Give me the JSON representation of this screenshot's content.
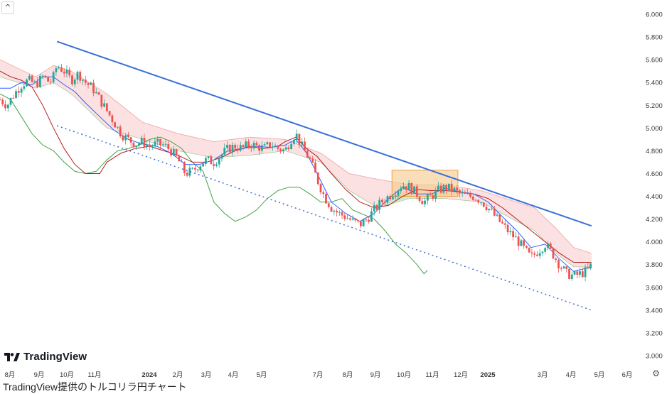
{
  "chart_data": {
    "type": "line",
    "title": "",
    "caption": "TradingView提供のトルコリラ円チャート",
    "y_axis": {
      "ticks": [
        "6.000",
        "5.800",
        "5.600",
        "5.400",
        "5.200",
        "5.000",
        "4.800",
        "4.600",
        "4.400",
        "4.200",
        "4.000",
        "3.800",
        "3.600",
        "3.400",
        "3.200",
        "3.000"
      ],
      "range": [
        3.0,
        6.0
      ],
      "position": "right"
    },
    "x_axis": {
      "ticks": [
        "8月",
        "9月",
        "10月",
        "11月",
        "2024",
        "2月",
        "3月",
        "4月",
        "5月",
        "7月",
        "8月",
        "9月",
        "10月",
        "11月",
        "12月",
        "2025",
        "3月",
        "4月",
        "5月",
        "6月"
      ]
    },
    "price_path": [
      [
        0,
        5.25
      ],
      [
        4,
        5.2
      ],
      [
        8,
        5.3
      ],
      [
        12,
        5.38
      ],
      [
        16,
        5.42
      ],
      [
        20,
        5.38
      ],
      [
        24,
        5.45
      ],
      [
        28,
        5.4
      ],
      [
        30,
        5.45
      ],
      [
        32,
        5.55
      ],
      [
        36,
        5.5
      ],
      [
        40,
        5.42
      ],
      [
        44,
        5.48
      ],
      [
        48,
        5.4
      ],
      [
        52,
        5.35
      ],
      [
        56,
        5.25
      ],
      [
        60,
        5.15
      ],
      [
        64,
        5.05
      ],
      [
        68,
        4.95
      ],
      [
        72,
        4.9
      ],
      [
        76,
        4.86
      ],
      [
        80,
        4.88
      ],
      [
        84,
        4.84
      ],
      [
        88,
        4.86
      ],
      [
        92,
        4.85
      ],
      [
        96,
        4.8
      ],
      [
        100,
        4.72
      ],
      [
        104,
        4.6
      ],
      [
        108,
        4.62
      ],
      [
        112,
        4.68
      ],
      [
        116,
        4.72
      ],
      [
        120,
        4.7
      ],
      [
        124,
        4.76
      ],
      [
        128,
        4.82
      ],
      [
        132,
        4.84
      ],
      [
        136,
        4.82
      ],
      [
        140,
        4.86
      ],
      [
        144,
        4.84
      ],
      [
        148,
        4.82
      ],
      [
        152,
        4.86
      ],
      [
        156,
        4.82
      ],
      [
        160,
        4.8
      ],
      [
        164,
        4.92
      ],
      [
        166,
        4.95
      ],
      [
        170,
        4.82
      ],
      [
        174,
        4.72
      ],
      [
        178,
        4.55
      ],
      [
        182,
        4.4
      ],
      [
        186,
        4.3
      ],
      [
        190,
        4.25
      ],
      [
        194,
        4.22
      ],
      [
        198,
        4.18
      ],
      [
        202,
        4.15
      ],
      [
        206,
        4.2
      ],
      [
        210,
        4.28
      ],
      [
        214,
        4.35
      ],
      [
        218,
        4.4
      ],
      [
        222,
        4.45
      ],
      [
        226,
        4.5
      ],
      [
        230,
        4.48
      ],
      [
        234,
        4.42
      ],
      [
        238,
        4.35
      ],
      [
        242,
        4.4
      ],
      [
        246,
        4.45
      ],
      [
        250,
        4.48
      ],
      [
        254,
        4.46
      ],
      [
        258,
        4.42
      ],
      [
        262,
        4.4
      ],
      [
        266,
        4.4
      ],
      [
        270,
        4.36
      ],
      [
        274,
        4.3
      ],
      [
        278,
        4.22
      ],
      [
        282,
        4.15
      ],
      [
        286,
        4.08
      ],
      [
        290,
        4.02
      ],
      [
        294,
        3.94
      ],
      [
        298,
        3.86
      ],
      [
        302,
        3.92
      ],
      [
        306,
        3.98
      ],
      [
        310,
        3.9
      ],
      [
        314,
        3.8
      ],
      [
        318,
        3.72
      ],
      [
        322,
        3.7
      ],
      [
        326,
        3.72
      ],
      [
        330,
        3.75
      ],
      [
        332,
        3.8
      ]
    ],
    "baseline_path": [
      [
        0,
        5.5
      ],
      [
        6,
        5.45
      ],
      [
        12,
        5.42
      ],
      [
        18,
        5.36
      ],
      [
        24,
        5.2
      ],
      [
        30,
        5.0
      ],
      [
        36,
        4.82
      ],
      [
        42,
        4.68
      ],
      [
        48,
        4.6
      ],
      [
        56,
        4.6
      ],
      [
        60,
        4.7
      ],
      [
        68,
        4.78
      ],
      [
        76,
        4.82
      ],
      [
        84,
        4.84
      ],
      [
        92,
        4.8
      ],
      [
        100,
        4.76
      ],
      [
        108,
        4.7
      ],
      [
        116,
        4.7
      ],
      [
        124,
        4.74
      ],
      [
        132,
        4.8
      ],
      [
        140,
        4.84
      ],
      [
        148,
        4.82
      ],
      [
        156,
        4.84
      ],
      [
        160,
        4.88
      ],
      [
        166,
        4.92
      ],
      [
        172,
        4.82
      ],
      [
        178,
        4.75
      ],
      [
        186,
        4.6
      ],
      [
        194,
        4.46
      ],
      [
        202,
        4.35
      ],
      [
        210,
        4.3
      ],
      [
        218,
        4.32
      ],
      [
        226,
        4.4
      ],
      [
        234,
        4.46
      ],
      [
        242,
        4.45
      ],
      [
        250,
        4.45
      ],
      [
        258,
        4.44
      ],
      [
        266,
        4.42
      ],
      [
        274,
        4.38
      ],
      [
        282,
        4.3
      ],
      [
        290,
        4.2
      ],
      [
        298,
        4.1
      ],
      [
        306,
        4.0
      ],
      [
        314,
        3.9
      ],
      [
        322,
        3.82
      ],
      [
        332,
        3.82
      ]
    ],
    "conversion_path": [
      [
        0,
        5.35
      ],
      [
        6,
        5.35
      ],
      [
        12,
        5.4
      ],
      [
        18,
        5.38
      ],
      [
        24,
        5.45
      ],
      [
        30,
        5.45
      ],
      [
        36,
        5.38
      ],
      [
        42,
        5.32
      ],
      [
        48,
        5.22
      ],
      [
        56,
        5.1
      ],
      [
        64,
        4.98
      ],
      [
        72,
        4.9
      ],
      [
        80,
        4.86
      ],
      [
        88,
        4.84
      ],
      [
        96,
        4.78
      ],
      [
        104,
        4.68
      ],
      [
        112,
        4.68
      ],
      [
        120,
        4.72
      ],
      [
        128,
        4.8
      ],
      [
        136,
        4.82
      ],
      [
        144,
        4.84
      ],
      [
        152,
        4.83
      ],
      [
        160,
        4.85
      ],
      [
        166,
        4.9
      ],
      [
        172,
        4.78
      ],
      [
        178,
        4.6
      ],
      [
        186,
        4.35
      ],
      [
        194,
        4.25
      ],
      [
        202,
        4.18
      ],
      [
        210,
        4.25
      ],
      [
        218,
        4.38
      ],
      [
        226,
        4.48
      ],
      [
        234,
        4.42
      ],
      [
        242,
        4.42
      ],
      [
        250,
        4.47
      ],
      [
        258,
        4.44
      ],
      [
        266,
        4.42
      ],
      [
        274,
        4.35
      ],
      [
        282,
        4.22
      ],
      [
        290,
        4.1
      ],
      [
        298,
        3.95
      ],
      [
        306,
        3.98
      ],
      [
        314,
        3.85
      ],
      [
        322,
        3.74
      ],
      [
        332,
        3.78
      ]
    ],
    "lagging_path": [
      [
        0,
        5.3
      ],
      [
        6,
        5.25
      ],
      [
        12,
        5.1
      ],
      [
        18,
        4.95
      ],
      [
        24,
        4.85
      ],
      [
        30,
        4.8
      ],
      [
        36,
        4.7
      ],
      [
        42,
        4.62
      ],
      [
        48,
        4.6
      ],
      [
        54,
        4.62
      ],
      [
        60,
        4.72
      ],
      [
        66,
        4.8
      ],
      [
        72,
        4.82
      ],
      [
        78,
        4.85
      ],
      [
        84,
        4.9
      ],
      [
        90,
        4.92
      ],
      [
        96,
        4.88
      ],
      [
        102,
        4.82
      ],
      [
        108,
        4.7
      ],
      [
        114,
        4.62
      ],
      [
        120,
        4.35
      ],
      [
        126,
        4.25
      ],
      [
        132,
        4.18
      ],
      [
        138,
        4.22
      ],
      [
        144,
        4.28
      ],
      [
        150,
        4.38
      ],
      [
        156,
        4.45
      ],
      [
        162,
        4.48
      ],
      [
        168,
        4.48
      ],
      [
        174,
        4.42
      ],
      [
        180,
        4.35
      ],
      [
        186,
        4.35
      ],
      [
        192,
        4.38
      ],
      [
        198,
        4.28
      ],
      [
        204,
        4.24
      ],
      [
        210,
        4.2
      ],
      [
        216,
        4.1
      ],
      [
        222,
        3.98
      ],
      [
        228,
        3.9
      ],
      [
        234,
        3.8
      ],
      [
        238,
        3.72
      ],
      [
        240,
        3.75
      ]
    ],
    "cloud_upper": [
      [
        0,
        5.6
      ],
      [
        20,
        5.45
      ],
      [
        30,
        5.55
      ],
      [
        40,
        5.5
      ],
      [
        60,
        5.3
      ],
      [
        80,
        5.05
      ],
      [
        100,
        4.95
      ],
      [
        120,
        4.88
      ],
      [
        140,
        4.92
      ],
      [
        160,
        4.9
      ],
      [
        180,
        4.78
      ],
      [
        196,
        4.6
      ],
      [
        212,
        4.55
      ],
      [
        230,
        4.5
      ],
      [
        250,
        4.5
      ],
      [
        270,
        4.45
      ],
      [
        290,
        4.35
      ],
      [
        300,
        4.3
      ],
      [
        312,
        4.12
      ],
      [
        322,
        3.95
      ],
      [
        332,
        3.9
      ]
    ],
    "cloud_lower": [
      [
        0,
        5.45
      ],
      [
        20,
        5.35
      ],
      [
        30,
        5.4
      ],
      [
        40,
        5.3
      ],
      [
        60,
        5.0
      ],
      [
        80,
        4.9
      ],
      [
        100,
        4.8
      ],
      [
        120,
        4.74
      ],
      [
        140,
        4.76
      ],
      [
        160,
        4.8
      ],
      [
        180,
        4.7
      ],
      [
        196,
        4.45
      ],
      [
        212,
        4.3
      ],
      [
        230,
        4.38
      ],
      [
        250,
        4.38
      ],
      [
        270,
        4.35
      ],
      [
        290,
        4.18
      ],
      [
        300,
        4.1
      ],
      [
        312,
        3.9
      ],
      [
        322,
        3.78
      ],
      [
        332,
        3.78
      ]
    ],
    "trendline_upper": [
      [
        32,
        5.76
      ],
      [
        332,
        4.14
      ]
    ],
    "trendline_lower": [
      [
        32,
        5.02
      ],
      [
        332,
        3.4
      ]
    ],
    "highlight_zone": {
      "x_range": [
        220,
        257
      ],
      "y_range": [
        4.4,
        4.63
      ],
      "color": "#f5c98a"
    },
    "colors": {
      "up_candle": "#26a69a",
      "down_candle": "#ef5350",
      "trendline": "#3a6fd8",
      "conversion_line": "#2962ff",
      "baseline": "#b71c1c",
      "lagging_span": "#43a047",
      "cloud_bearish": "#f8c8c8",
      "cloud_bullish": "#c8e6c9"
    },
    "grid": false
  },
  "logo": {
    "text": "TradingView"
  },
  "controls": {
    "collapse_icon": "chevron-up-icon",
    "settings_icon": "gear-icon"
  }
}
